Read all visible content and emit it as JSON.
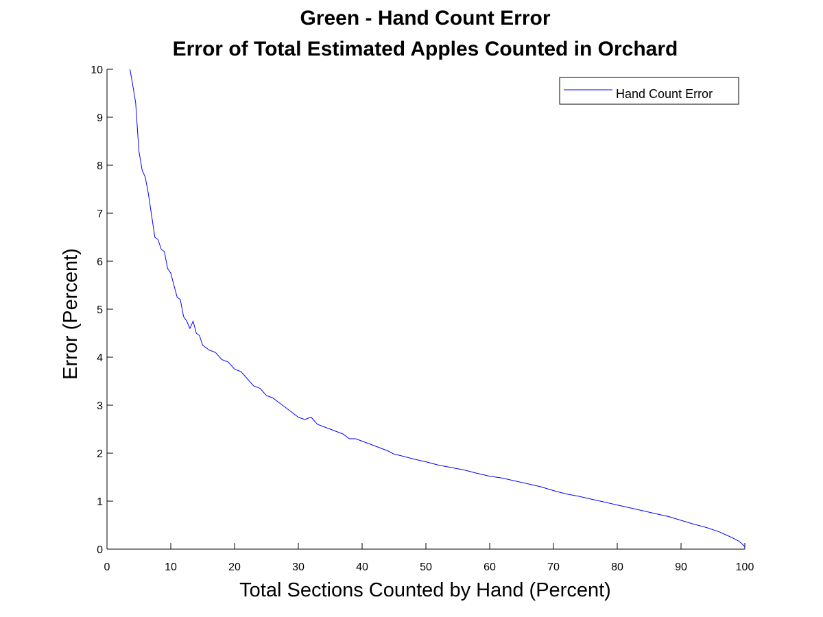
{
  "chart_data": {
    "type": "line",
    "title": "Green - Hand Count Error",
    "subtitle": "Error of Total Estimated Apples Counted in Orchard",
    "xlabel": "Total Sections Counted by Hand (Percent)",
    "ylabel": "Error (Percent)",
    "xlim": [
      0,
      100
    ],
    "ylim": [
      0,
      10
    ],
    "xticks": [
      "0",
      "10",
      "20",
      "30",
      "40",
      "50",
      "60",
      "70",
      "80",
      "90",
      "100"
    ],
    "yticks": [
      "0",
      "1",
      "2",
      "3",
      "4",
      "5",
      "6",
      "7",
      "8",
      "9",
      "10"
    ],
    "grid": false,
    "legend_position": "top-right",
    "colors": {
      "line": "#0000ff",
      "axes": "#000000",
      "background": "#ffffff"
    },
    "series": [
      {
        "name": "Hand Count Error",
        "x": [
          3.6,
          4.0,
          4.5,
          5.0,
          5.5,
          6.0,
          6.5,
          7.0,
          7.5,
          8.0,
          8.5,
          9.0,
          9.5,
          10.0,
          10.5,
          11.0,
          11.5,
          12.0,
          12.5,
          13.0,
          13.5,
          14.0,
          14.5,
          15.0,
          16.0,
          17.0,
          18.0,
          19.0,
          20.0,
          21.0,
          22.0,
          23.0,
          24.0,
          25.0,
          26.0,
          27.0,
          28.0,
          29.0,
          30.0,
          31.0,
          32.0,
          33.0,
          34.0,
          35.0,
          36.0,
          37.0,
          38.0,
          39.0,
          40.0,
          42.0,
          44.0,
          45.0,
          46.0,
          48.0,
          50.0,
          52.0,
          54.0,
          56.0,
          58.0,
          60.0,
          62.0,
          64.0,
          66.0,
          68.0,
          70.0,
          72.0,
          74.0,
          76.0,
          78.0,
          80.0,
          82.0,
          84.0,
          86.0,
          88.0,
          90.0,
          92.0,
          94.0,
          96.0,
          97.0,
          98.0,
          99.0,
          99.5,
          100.0
        ],
        "values": [
          10.0,
          9.7,
          9.3,
          8.3,
          7.9,
          7.75,
          7.4,
          6.95,
          6.5,
          6.45,
          6.25,
          6.2,
          5.85,
          5.75,
          5.5,
          5.25,
          5.2,
          4.85,
          4.75,
          4.6,
          4.75,
          4.5,
          4.45,
          4.25,
          4.15,
          4.1,
          3.95,
          3.9,
          3.75,
          3.7,
          3.55,
          3.4,
          3.35,
          3.2,
          3.15,
          3.05,
          2.95,
          2.85,
          2.75,
          2.7,
          2.75,
          2.6,
          2.55,
          2.5,
          2.45,
          2.4,
          2.3,
          2.3,
          2.25,
          2.15,
          2.05,
          1.98,
          1.95,
          1.88,
          1.82,
          1.75,
          1.7,
          1.65,
          1.58,
          1.52,
          1.48,
          1.42,
          1.36,
          1.3,
          1.22,
          1.15,
          1.1,
          1.04,
          0.98,
          0.92,
          0.86,
          0.8,
          0.74,
          0.68,
          0.6,
          0.52,
          0.45,
          0.36,
          0.3,
          0.24,
          0.17,
          0.12,
          0.05
        ]
      }
    ]
  }
}
